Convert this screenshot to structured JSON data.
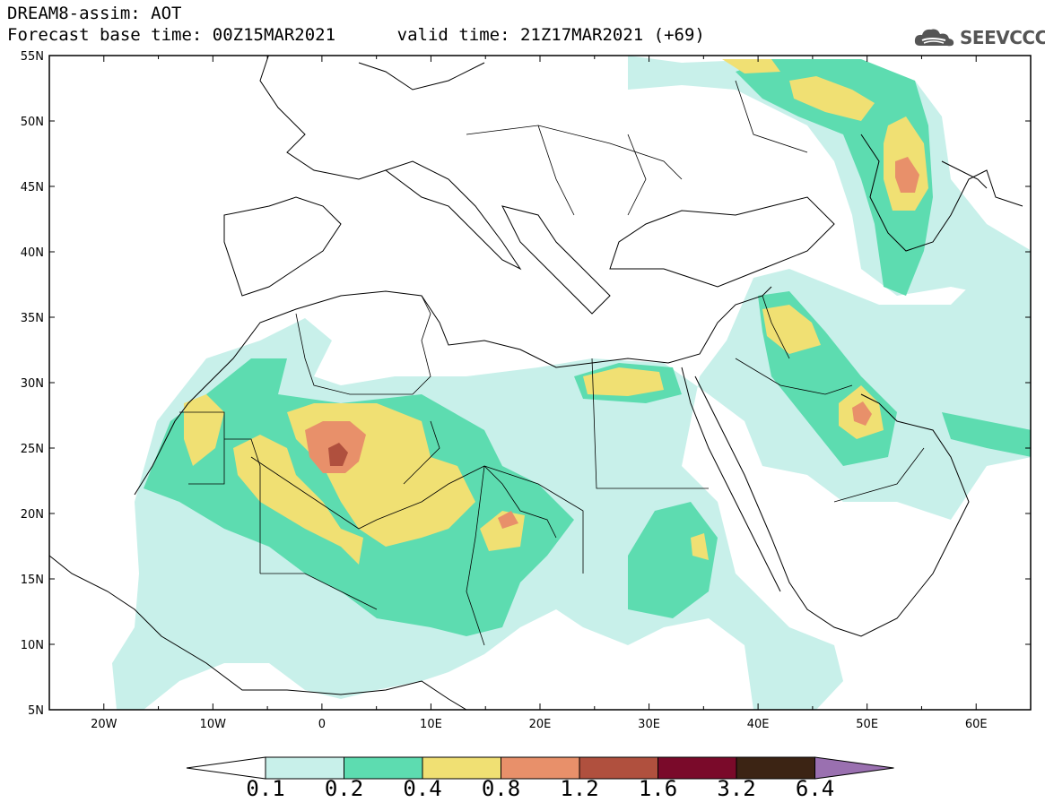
{
  "header": {
    "line1": "DREAM8-assim: AOT",
    "line2": "Forecast base time: 00Z15MAR2021      valid time: 21Z17MAR2021 (+69)"
  },
  "logo": {
    "text": "SEEVCCC",
    "icon": "cloud-icon"
  },
  "map": {
    "lon_range": [
      -25,
      65
    ],
    "lat_range": [
      5,
      55
    ],
    "lat_labels": [
      "55N",
      "50N",
      "45N",
      "40N",
      "35N",
      "30N",
      "25N",
      "20N",
      "15N",
      "10N",
      "5N"
    ],
    "lon_labels": [
      "20W",
      "10W",
      "0",
      "10E",
      "20E",
      "30E",
      "40E",
      "50E",
      "60E"
    ]
  },
  "colorbar": {
    "labels": [
      "0.1",
      "0.2",
      "0.4",
      "0.8",
      "1.2",
      "1.6",
      "3.2",
      "6.4"
    ],
    "colors": [
      "#c8f0ea",
      "#5ddcb0",
      "#f0e073",
      "#e8906a",
      "#b0503e",
      "#7a0a2a",
      "#3c2414",
      "#9a70b0"
    ]
  }
}
